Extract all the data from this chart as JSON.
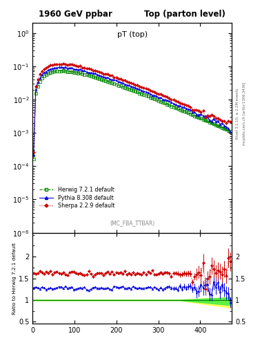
{
  "title_left": "1960 GeV ppbar",
  "title_right": "Top (parton level)",
  "main_title": "pT (top)",
  "annotation": "(MC_FBA_TTBAR)",
  "right_label_top": "Rivet 3.1.10, ≥ 2.2M events",
  "right_label_bottom": "mcplots.cern.ch [arXiv:1306.3436]",
  "xlim": [
    0,
    475
  ],
  "ylim_main": [
    1e-06,
    2.0
  ],
  "ylim_ratio": [
    0.45,
    2.55
  ],
  "ratio_yticks": [
    0.5,
    1.0,
    1.5,
    2.0
  ],
  "herwig_color": "#008800",
  "pythia_color": "#0000dd",
  "sherpa_color": "#cc0000",
  "green_band_color": "#44ee44",
  "yellow_band_color": "#ffff44",
  "herwig_label": "Herwig 7.2.1 default",
  "pythia_label": "Pythia 8.308 default",
  "sherpa_label": "Sherpa 2.2.9 default"
}
